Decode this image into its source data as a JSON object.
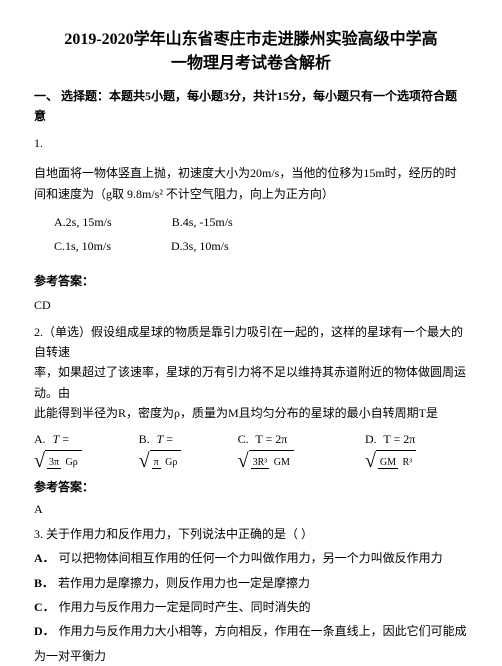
{
  "title_line1": "2019-2020学年山东省枣庄市走进滕州实验高级中学高",
  "title_line2": "一物理月考试卷含解析",
  "section1_head": "一、 选择题：本题共5小题，每小题3分，共计15分，每小题只有一个选项符合题意",
  "q1_num": "1.",
  "q1_body1": "自地面将一物体竖直上抛，初速度大小为20m/s，当他的位移为15m时，经历的时",
  "q1_body2": "间和速度为（g取 9.8m/s² 不计空气阻力，向上为正方向）",
  "q1_optA": "A.2s, 15m/s",
  "q1_optB": "B.4s, -15m/s",
  "q1_optC": "C.1s, 10m/s",
  "q1_optD": "D.3s, 10m/s",
  "ans_label": "参考答案：",
  "q1_ans": "CD",
  "q2_body1": "2.（单选）假设组成星球的物质是靠引力吸引在一起的，这样的星球有一个最大的自转速",
  "q2_body2": "率，如果超过了该速率，星球的万有引力将不足以维持其赤道附近的物体做圆周运动。由",
  "q2_body3": "此能得到半径为R，密度为ρ，质量为M且均匀分布的星球的最小自转周期T是",
  "formula": {
    "A_label": "A.",
    "A_num": "3π",
    "A_den": "Gρ",
    "B_label": "B.",
    "B_num": "π",
    "B_den": "Gρ",
    "C_label": "C.",
    "C_pre": "T = 2π",
    "C_num": "3R³",
    "C_den": "GM",
    "D_label": "D.",
    "D_pre": "T = 2π",
    "D_num": "GM",
    "D_den": "R³"
  },
  "q2_ans": "A",
  "q3_head": "3. 关于作用力和反作用力，下列说法中正确的是（    ）",
  "q3_A": "可以把物体间相互作用的任何一个力叫做作用力，另一个力叫做反作用力",
  "q3_B": "若作用力是摩擦力，则反作用力也一定是摩擦力",
  "q3_C": "作用力与反作用力一定是同时产生、同时消失的",
  "q3_D1": "作用力与反作用力大小相等，方向相反，作用在一条直线上，因此它们可能成",
  "q3_D2": "为一对平衡力",
  "labels": {
    "A": "A．",
    "B": "B．",
    "C": "C．",
    "D": "D．"
  },
  "colors": {
    "text": "#000000",
    "bg": "#ffffff"
  }
}
